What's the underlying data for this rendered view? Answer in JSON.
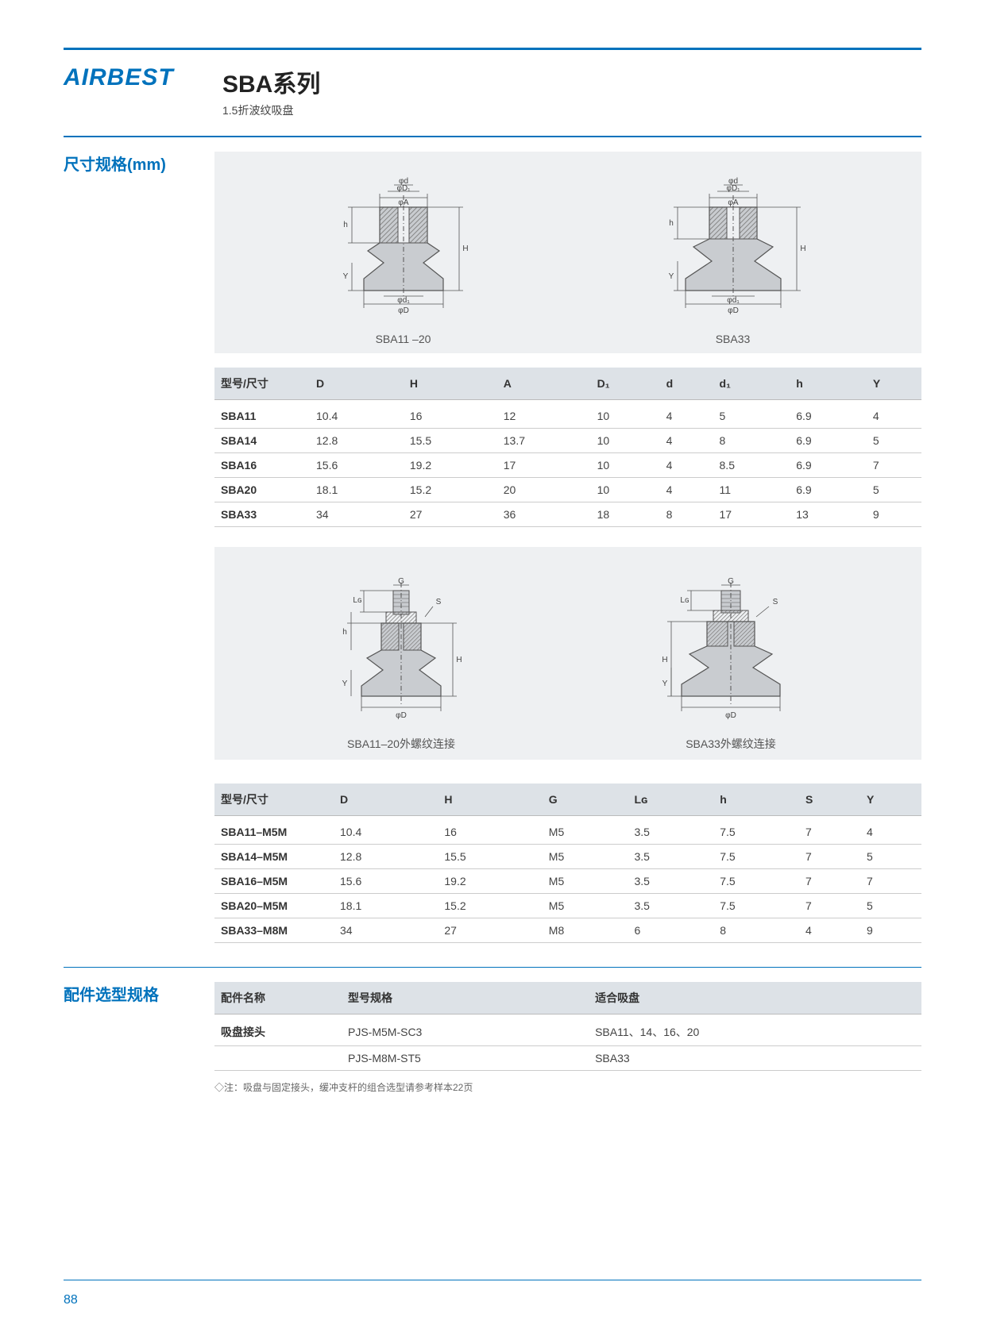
{
  "logo": "AIRBEST",
  "series_title": "SBA系列",
  "series_sub": "1.5折波纹吸盘",
  "section1_label": "尺寸规格(mm)",
  "section2_label": "配件选型规格",
  "diagram1_caption": "SBA11 –20",
  "diagram2_caption": "SBA33",
  "diagram3_caption": "SBA11–20外螺纹连接",
  "diagram4_caption": "SBA33外螺纹连接",
  "diagram_labels": {
    "phiA": "φA",
    "phiD1u": "φD₁",
    "phid": "φd",
    "phid1": "φd₁",
    "phiD": "φD",
    "H": "H",
    "h": "h",
    "Y": "Y",
    "G": "G",
    "S": "S",
    "LG": "Lɢ"
  },
  "table1": {
    "headers": [
      "型号/尺寸",
      "D",
      "H",
      "A",
      "D₁",
      "d",
      "d₁",
      "h",
      "Y"
    ],
    "rows": [
      [
        "SBA11",
        "10.4",
        "16",
        "12",
        "10",
        "4",
        "5",
        "6.9",
        "4"
      ],
      [
        "SBA14",
        "12.8",
        "15.5",
        "13.7",
        "10",
        "4",
        "8",
        "6.9",
        "5"
      ],
      [
        "SBA16",
        "15.6",
        "19.2",
        "17",
        "10",
        "4",
        "8.5",
        "6.9",
        "7"
      ],
      [
        "SBA20",
        "18.1",
        "15.2",
        "20",
        "10",
        "4",
        "11",
        "6.9",
        "5"
      ],
      [
        "SBA33",
        "34",
        "27",
        "36",
        "18",
        "8",
        "17",
        "13",
        "9"
      ]
    ]
  },
  "table2": {
    "headers": [
      "型号/尺寸",
      "D",
      "H",
      "G",
      "Lɢ",
      "h",
      "S",
      "Y"
    ],
    "rows": [
      [
        "SBA11–M5M",
        "10.4",
        "16",
        "M5",
        "3.5",
        "7.5",
        "7",
        "4"
      ],
      [
        "SBA14–M5M",
        "12.8",
        "15.5",
        "M5",
        "3.5",
        "7.5",
        "7",
        "5"
      ],
      [
        "SBA16–M5M",
        "15.6",
        "19.2",
        "M5",
        "3.5",
        "7.5",
        "7",
        "7"
      ],
      [
        "SBA20–M5M",
        "18.1",
        "15.2",
        "M5",
        "3.5",
        "7.5",
        "7",
        "5"
      ],
      [
        "SBA33–M8M",
        "34",
        "27",
        "M8",
        "6",
        "8",
        "4",
        "9"
      ]
    ]
  },
  "table3": {
    "headers": [
      "配件名称",
      "型号规格",
      "适合吸盘"
    ],
    "rows": [
      [
        "吸盘接头",
        "PJS-M5M-SC3",
        "SBA11、14、16、20"
      ],
      [
        "",
        "PJS-M8M-ST5",
        "SBA33"
      ]
    ]
  },
  "note": "◇注：吸盘与固定接头，缓冲支杆的组合选型请参考样本22页",
  "page_num": "88",
  "colors": {
    "brand": "#0072bc",
    "panel_bg": "#eef0f2",
    "header_bg": "#dde2e7",
    "outline": "#777",
    "fill_light": "#c9ccd0",
    "hatch": "#888"
  }
}
